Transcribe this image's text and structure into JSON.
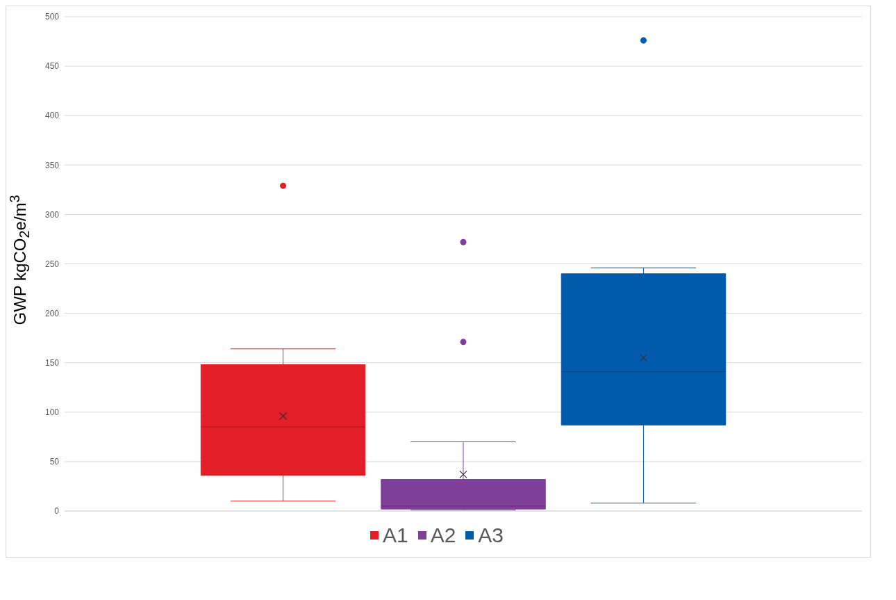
{
  "chart_data": {
    "type": "box",
    "ylabel": "GWP kgCO$_{2}$e/m$^{3}$",
    "categories": [
      null
    ],
    "ylim": [
      0,
      500
    ],
    "yticks": [
      0,
      50,
      100,
      150,
      200,
      250,
      300,
      350,
      400,
      450,
      500
    ],
    "grid": "y",
    "legend": "bottom",
    "series": [
      {
        "name": "A1",
        "color": "#e41e26",
        "boxes": [
          {
            "low": 10,
            "q1": 36,
            "median": 85,
            "q3": 148,
            "high": 164,
            "mean": 96,
            "outliers": [
              329
            ]
          }
        ]
      },
      {
        "name": "A2",
        "color": "#7f3f98",
        "boxes": [
          {
            "low": 1,
            "q1": 2,
            "median": 5,
            "q3": 32,
            "high": 70,
            "mean": 37,
            "outliers": [
              272,
              171
            ]
          }
        ]
      },
      {
        "name": "A3",
        "color": "#005bac",
        "boxes": [
          {
            "low": 8,
            "q1": 87,
            "median": 141,
            "q3": 240,
            "high": 246,
            "mean": 155,
            "outliers": [
              476
            ]
          }
        ]
      }
    ]
  }
}
